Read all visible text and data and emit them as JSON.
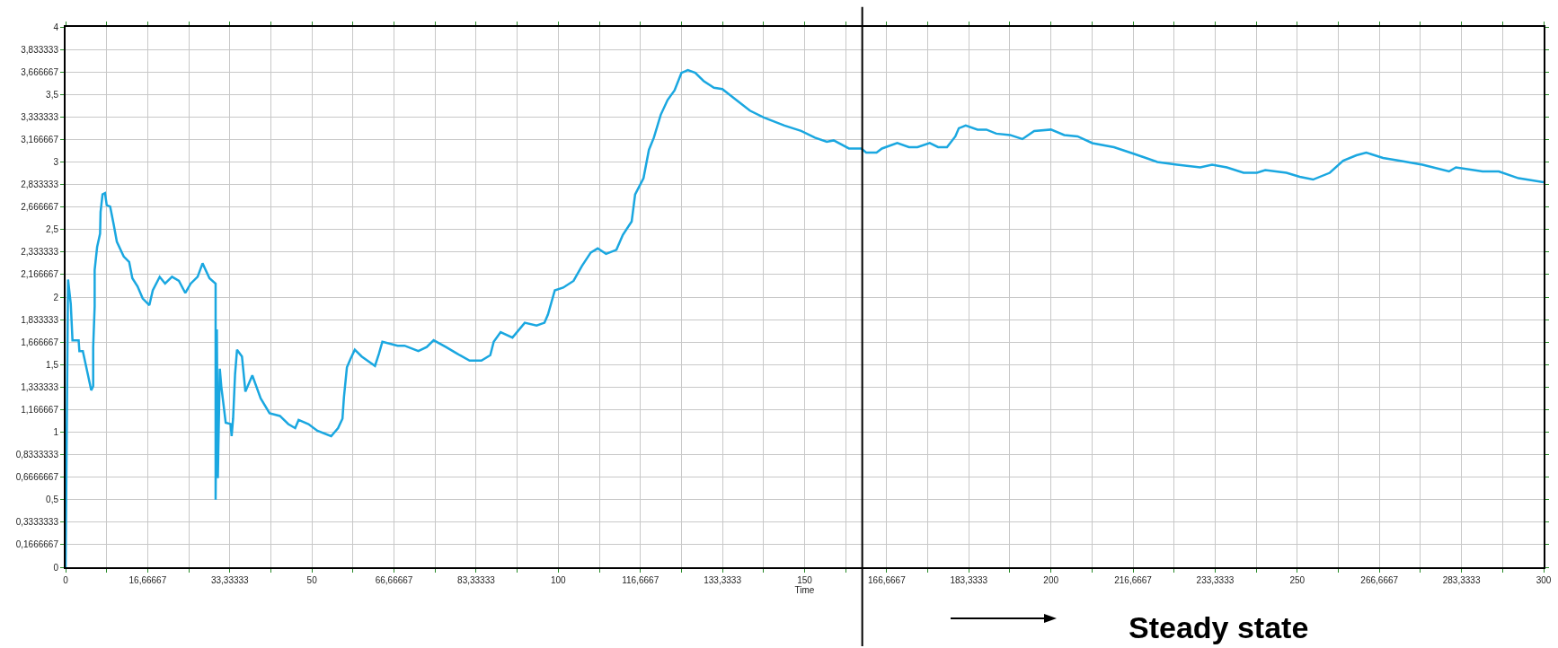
{
  "chart_data": {
    "type": "line",
    "xlabel": "Time",
    "annotations": [
      "Steady state"
    ],
    "grid": true,
    "marker": "none",
    "line_style": "solid",
    "xlim": [
      0,
      300
    ],
    "ylim": [
      0,
      4
    ],
    "xticks": [
      0,
      {
        "value": 8.33333,
        "label": null
      },
      {
        "value": 16.66667,
        "label": "16,66667"
      },
      {
        "value": 25,
        "label": null
      },
      {
        "value": 33.33333,
        "label": "33,33333"
      },
      {
        "value": 41.66667,
        "label": null
      },
      50,
      {
        "value": 58.33333,
        "label": null
      },
      {
        "value": 66.66667,
        "label": "66,66667"
      },
      {
        "value": 75,
        "label": null
      },
      {
        "value": 83.33333,
        "label": "83,33333"
      },
      {
        "value": 91.66667,
        "label": null
      },
      100,
      {
        "value": 108.3333,
        "label": null
      },
      {
        "value": 116.6667,
        "label": "116,6667"
      },
      {
        "value": 125,
        "label": null
      },
      {
        "value": 133.3333,
        "label": "133,3333"
      },
      {
        "value": 141.6667,
        "label": null
      },
      150,
      {
        "value": 158.3333,
        "label": null
      },
      {
        "value": 166.6667,
        "label": "166,6667"
      },
      {
        "value": 175,
        "label": null
      },
      {
        "value": 183.3333,
        "label": "183,3333"
      },
      {
        "value": 191.6667,
        "label": null
      },
      200,
      {
        "value": 208.3333,
        "label": null
      },
      {
        "value": 216.6667,
        "label": "216,6667"
      },
      {
        "value": 225,
        "label": null
      },
      {
        "value": 233.3333,
        "label": "233,3333"
      },
      {
        "value": 241.6667,
        "label": null
      },
      250,
      {
        "value": 258.3333,
        "label": null
      },
      {
        "value": 266.6667,
        "label": "266,6667"
      },
      {
        "value": 275,
        "label": null
      },
      {
        "value": 283.3333,
        "label": "283,3333"
      },
      {
        "value": 291.6667,
        "label": null
      },
      300
    ],
    "yticks": [
      0,
      {
        "value": 0.1666667,
        "label": "0,1666667"
      },
      {
        "value": 0.3333333,
        "label": "0,3333333"
      },
      {
        "value": 0.5,
        "label": "0,5"
      },
      {
        "value": 0.6666667,
        "label": "0,6666667"
      },
      {
        "value": 0.8333333,
        "label": "0,8333333"
      },
      1,
      {
        "value": 1.166667,
        "label": "1,166667"
      },
      {
        "value": 1.333333,
        "label": "1,333333"
      },
      {
        "value": 1.5,
        "label": "1,5"
      },
      {
        "value": 1.666667,
        "label": "1,666667"
      },
      {
        "value": 1.833333,
        "label": "1,833333"
      },
      2,
      {
        "value": 2.166667,
        "label": "2,166667"
      },
      {
        "value": 2.333333,
        "label": "2,333333"
      },
      {
        "value": 2.5,
        "label": "2,5"
      },
      {
        "value": 2.666667,
        "label": "2,666667"
      },
      {
        "value": 2.833333,
        "label": "2,833333"
      },
      3,
      {
        "value": 3.166667,
        "label": "3,166667"
      },
      {
        "value": 3.333333,
        "label": "3,333333"
      },
      {
        "value": 3.5,
        "label": "3,5"
      },
      {
        "value": 3.666667,
        "label": "3,666667"
      },
      {
        "value": 3.833333,
        "label": "3,833333"
      },
      4
    ],
    "ref_lines": [
      {
        "axis": "x",
        "value": 161.7,
        "color": "#000000"
      }
    ],
    "x": [
      0,
      0.5,
      1.05,
      1.4,
      2.65,
      2.8,
      3.5,
      4.5,
      5.2,
      5.6,
      5.6,
      5.9,
      5.9,
      6.4,
      7.0,
      7.1,
      7.5,
      8.0,
      8.35,
      9.05,
      9.75,
      10.4,
      11.8,
      12.9,
      13.55,
      14.6,
      15.65,
      17.0,
      17.7,
      19.1,
      20.2,
      21.6,
      23.0,
      24.3,
      25.4,
      26.8,
      27.8,
      29.2,
      30.45,
      30.45,
      30.7,
      30.9,
      31.3,
      31.6,
      32.0,
      32.5,
      33.5,
      33.7,
      34.0,
      34.4,
      34.8,
      35.8,
      36.5,
      37.9,
      39.6,
      41.4,
      43.5,
      45.2,
      46.6,
      47.3,
      49.3,
      51.1,
      53.9,
      55.3,
      56.2,
      56.5,
      57.1,
      57.8,
      58.7,
      60.1,
      62.8,
      63.6,
      64.3,
      67.4,
      68.8,
      71.6,
      73.3,
      74.7,
      77.2,
      80.0,
      82.0,
      84.4,
      86.2,
      86.9,
      88.3,
      90.7,
      93.2,
      95.6,
      97.2,
      97.9,
      99.3,
      101.0,
      103.1,
      104.8,
      106.6,
      108.0,
      109.7,
      111.8,
      113.1,
      114.9,
      115.6,
      117.3,
      118.4,
      119.4,
      120.8,
      122.2,
      123.6,
      125.0,
      126.3,
      127.8,
      129.5,
      131.6,
      133.3,
      136.1,
      138.9,
      141.7,
      145.9,
      149.3,
      152.1,
      154.5,
      155.9,
      159.0,
      161.5,
      162.5,
      164.6,
      165.7,
      168.8,
      171.2,
      172.9,
      175.4,
      177.1,
      178.9,
      180.6,
      181.3,
      182.7,
      185.1,
      186.9,
      188.9,
      191.7,
      194.2,
      196.6,
      200.0,
      202.7,
      205.4,
      208.4,
      212.8,
      216.9,
      221.6,
      225.6,
      230.3,
      232.7,
      235.7,
      239.1,
      241.8,
      243.5,
      247.8,
      250.5,
      253.2,
      256.6,
      259.3,
      262.0,
      264.0,
      267.4,
      270.7,
      275.4,
      280.8,
      282.2,
      287.6,
      290.9,
      294.9,
      300
    ],
    "series": [
      {
        "color": "#1aa7e0",
        "values": [
          0,
          2.13,
          1.95,
          1.68,
          1.68,
          1.6,
          1.6,
          1.43,
          1.31,
          1.34,
          1.63,
          1.93,
          2.2,
          2.37,
          2.47,
          2.63,
          2.76,
          2.77,
          2.68,
          2.67,
          2.54,
          2.41,
          2.3,
          2.26,
          2.14,
          2.08,
          1.99,
          1.94,
          2.05,
          2.15,
          2.1,
          2.15,
          2.12,
          2.03,
          2.1,
          2.15,
          2.25,
          2.14,
          2.1,
          0.5,
          1.76,
          0.66,
          1.47,
          1.34,
          1.22,
          1.07,
          1.06,
          0.97,
          1.1,
          1.43,
          1.61,
          1.56,
          1.3,
          1.42,
          1.25,
          1.14,
          1.12,
          1.06,
          1.03,
          1.09,
          1.06,
          1.01,
          0.97,
          1.03,
          1.1,
          1.26,
          1.48,
          1.54,
          1.61,
          1.56,
          1.49,
          1.58,
          1.67,
          1.64,
          1.64,
          1.6,
          1.63,
          1.68,
          1.63,
          1.57,
          1.53,
          1.53,
          1.57,
          1.67,
          1.74,
          1.7,
          1.81,
          1.79,
          1.81,
          1.87,
          2.05,
          2.07,
          2.12,
          2.23,
          2.33,
          2.36,
          2.32,
          2.35,
          2.46,
          2.56,
          2.76,
          2.88,
          3.09,
          3.18,
          3.35,
          3.46,
          3.53,
          3.66,
          3.68,
          3.66,
          3.6,
          3.55,
          3.54,
          3.46,
          3.38,
          3.33,
          3.27,
          3.23,
          3.18,
          3.15,
          3.16,
          3.1,
          3.1,
          3.07,
          3.07,
          3.1,
          3.14,
          3.11,
          3.11,
          3.14,
          3.11,
          3.11,
          3.19,
          3.25,
          3.27,
          3.24,
          3.24,
          3.21,
          3.2,
          3.17,
          3.23,
          3.24,
          3.2,
          3.19,
          3.14,
          3.11,
          3.06,
          3.0,
          2.98,
          2.96,
          2.98,
          2.96,
          2.92,
          2.92,
          2.94,
          2.92,
          2.89,
          2.87,
          2.92,
          3.01,
          3.05,
          3.07,
          3.03,
          3.01,
          2.98,
          2.93,
          2.96,
          2.93,
          2.93,
          2.88,
          2.85
        ]
      }
    ]
  }
}
